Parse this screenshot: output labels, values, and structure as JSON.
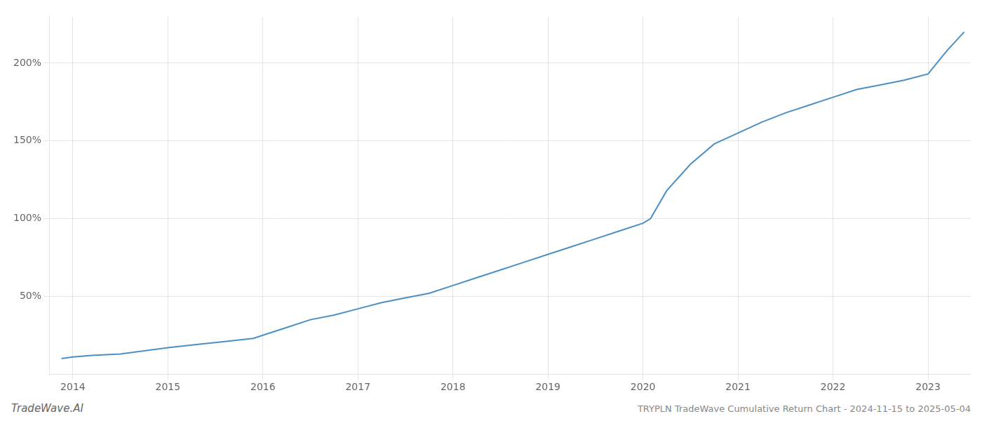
{
  "chart_data": {
    "type": "line",
    "annotations": [
      "TradeWave.AI",
      "TRYPLN TradeWave Cumulative Return Chart - 2024-11-15 to 2025-05-04"
    ],
    "x": [
      2013.88,
      2014.0,
      2014.2,
      2014.5,
      2014.75,
      2015.0,
      2015.3,
      2015.6,
      2015.9,
      2016.0,
      2016.25,
      2016.5,
      2016.75,
      2017.0,
      2017.25,
      2017.5,
      2017.75,
      2018.0,
      2018.25,
      2018.5,
      2018.75,
      2019.0,
      2019.25,
      2019.5,
      2019.75,
      2020.0,
      2020.08,
      2020.25,
      2020.5,
      2020.75,
      2021.0,
      2021.25,
      2021.5,
      2021.75,
      2022.0,
      2022.25,
      2022.5,
      2022.75,
      2023.0,
      2023.2,
      2023.38
    ],
    "values": [
      10,
      11,
      12,
      13,
      15,
      17,
      19,
      21,
      23,
      25,
      30,
      35,
      38,
      42,
      46,
      49,
      52,
      57,
      62,
      67,
      72,
      77,
      82,
      87,
      92,
      97,
      100,
      118,
      135,
      148,
      155,
      162,
      168,
      173,
      178,
      183,
      186,
      189,
      193,
      208,
      220
    ],
    "color": "#4a90c4",
    "xlim": [
      2013.75,
      2023.45
    ],
    "xticks": [
      2014,
      2015,
      2016,
      2017,
      2018,
      2019,
      2020,
      2021,
      2022,
      2023
    ],
    "ylim": [
      0,
      230
    ],
    "yticks": [
      {
        "value": 50,
        "label": "50%"
      },
      {
        "value": 100,
        "label": "100%"
      },
      {
        "value": 150,
        "label": "150%"
      },
      {
        "value": 200,
        "label": "200%"
      }
    ],
    "grid": true
  }
}
